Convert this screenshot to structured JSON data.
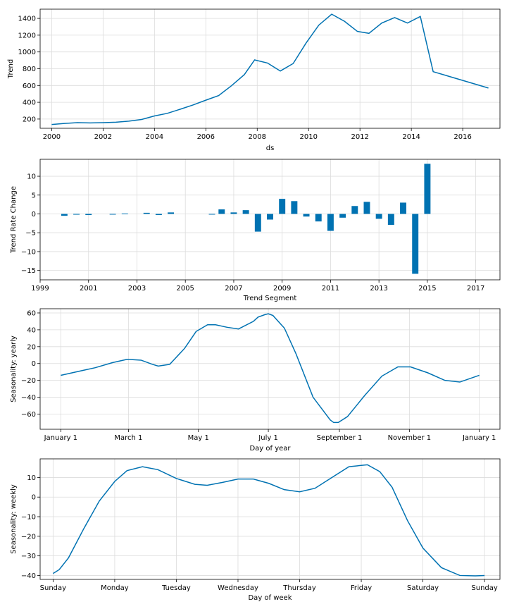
{
  "colors": {
    "series": "#0072B2",
    "grid": "#dcdcdc"
  },
  "chart_data": [
    {
      "type": "line",
      "title": "",
      "xlabel": "ds",
      "ylabel": "Trend",
      "xlim": [
        1999.55,
        2017.45
      ],
      "ylim": [
        90,
        1510
      ],
      "grid": true,
      "xticks": [
        2000,
        2002,
        2004,
        2006,
        2008,
        2010,
        2012,
        2014,
        2016
      ],
      "xtick_labels": [
        "2000",
        "2002",
        "2004",
        "2006",
        "2008",
        "2010",
        "2012",
        "2014",
        "2016"
      ],
      "yticks": [
        200,
        400,
        600,
        800,
        1000,
        1200,
        1400
      ],
      "ytick_labels": [
        "200",
        "400",
        "600",
        "800",
        "1000",
        "1200",
        "1400"
      ],
      "x": [
        2000.0,
        2000.5,
        2001.0,
        2001.5,
        2002.0,
        2002.5,
        2003.0,
        2003.5,
        2004.0,
        2004.5,
        2005.0,
        2005.5,
        2006.0,
        2006.5,
        2007.0,
        2007.5,
        2007.9,
        2008.4,
        2008.9,
        2009.4,
        2009.9,
        2010.4,
        2010.9,
        2011.4,
        2011.9,
        2012.35,
        2012.85,
        2013.35,
        2013.85,
        2014.35,
        2014.85,
        2017.0
      ],
      "y": [
        135,
        148,
        157,
        154,
        157,
        162,
        175,
        195,
        237,
        268,
        317,
        368,
        425,
        480,
        598,
        730,
        905,
        868,
        773,
        862,
        1105,
        1320,
        1450,
        1365,
        1245,
        1222,
        1345,
        1410,
        1345,
        1423,
        765,
        570
      ]
    },
    {
      "type": "bar",
      "title": "",
      "xlabel": "Trend Segment",
      "ylabel": "Trend Rate Change",
      "xlim": [
        1999,
        2018
      ],
      "ylim": [
        -17.5,
        14.5
      ],
      "grid": true,
      "xticks": [
        1999,
        2001,
        2003,
        2005,
        2007,
        2009,
        2011,
        2013,
        2015,
        2017
      ],
      "xtick_labels": [
        "1999",
        "2001",
        "2003",
        "2005",
        "2007",
        "2009",
        "2011",
        "2013",
        "2015",
        "2017"
      ],
      "yticks": [
        -15,
        -10,
        -5,
        0,
        5,
        10
      ],
      "ytick_labels": [
        "−15",
        "−10",
        "−5",
        "0",
        "5",
        "10"
      ],
      "bar_width": 0.26,
      "x": [
        2000.0,
        2000.5,
        2001.0,
        2002.0,
        2002.5,
        2003.4,
        2003.9,
        2004.4,
        2006.1,
        2006.5,
        2007.0,
        2007.5,
        2008.0,
        2008.5,
        2009.0,
        2009.5,
        2010.0,
        2010.5,
        2011.0,
        2011.5,
        2012.0,
        2012.5,
        2013.0,
        2013.5,
        2014.0,
        2014.5,
        2015.0
      ],
      "values": [
        -0.5,
        -0.2,
        -0.3,
        -0.1,
        0.1,
        0.3,
        -0.3,
        0.4,
        -0.1,
        1.2,
        0.4,
        1.0,
        -4.7,
        -1.5,
        4.0,
        3.4,
        -0.7,
        -2.0,
        -4.5,
        -1.0,
        2.1,
        3.2,
        -1.3,
        -2.9,
        3.0,
        -15.9,
        13.3
      ]
    },
    {
      "type": "line",
      "title": "",
      "xlabel": "Day of year",
      "ylabel": "Seasonality: yearly",
      "xlim": [
        -18,
        383
      ],
      "ylim": [
        -78,
        65
      ],
      "grid": true,
      "xticks": [
        0,
        59,
        120,
        181,
        243,
        304,
        365
      ],
      "xtick_labels": [
        "January 1",
        "March 1",
        "May 1",
        "July 1",
        "September 1",
        "November 1",
        "January 1"
      ],
      "yticks": [
        -60,
        -40,
        -20,
        0,
        20,
        40,
        60
      ],
      "ytick_labels": [
        "−60",
        "−40",
        "−20",
        "0",
        "20",
        "40",
        "60"
      ],
      "x": [
        0,
        20,
        30,
        45,
        58,
        70,
        80,
        85,
        95,
        108,
        118,
        128,
        135,
        145,
        155,
        168,
        172,
        178,
        181,
        185,
        195,
        205,
        220,
        235,
        238,
        242,
        250,
        265,
        280,
        294,
        305,
        320,
        335,
        348,
        365
      ],
      "y": [
        -14,
        -8,
        -5,
        1,
        5,
        4,
        -1,
        -3,
        -1,
        18,
        38,
        46,
        46,
        43,
        41,
        50,
        55,
        58,
        59,
        57,
        42,
        12,
        -40,
        -67,
        -70,
        -70,
        -63,
        -38,
        -15,
        -4,
        -4,
        -11,
        -20,
        -22,
        -14
      ]
    },
    {
      "type": "line",
      "title": "",
      "xlabel": "Day of week",
      "ylabel": "Seasonality: weekly",
      "xlim": [
        -0.21,
        7.25
      ],
      "ylim": [
        -42,
        19.5
      ],
      "grid": true,
      "xticks": [
        0,
        1,
        2,
        3,
        4,
        5,
        6,
        7
      ],
      "xtick_labels": [
        "Sunday",
        "Monday",
        "Tuesday",
        "Wednesday",
        "Thursday",
        "Friday",
        "Saturday",
        "Sunday"
      ],
      "yticks": [
        -40,
        -30,
        -20,
        -10,
        0,
        10
      ],
      "ytick_labels": [
        "−40",
        "−30",
        "−20",
        "−10",
        "0",
        "10"
      ],
      "x": [
        0.0,
        0.1,
        0.25,
        0.5,
        0.75,
        1.0,
        1.2,
        1.45,
        1.7,
        2.0,
        2.3,
        2.5,
        2.75,
        3.0,
        3.25,
        3.5,
        3.75,
        4.0,
        4.25,
        4.5,
        4.8,
        5.1,
        5.3,
        5.5,
        5.75,
        6.0,
        6.3,
        6.6,
        6.85,
        7.0
      ],
      "y": [
        -39,
        -37,
        -31,
        -16,
        -2,
        8,
        13.5,
        15.5,
        14,
        9.5,
        6.5,
        6.0,
        7.5,
        9.2,
        9.2,
        7.0,
        3.8,
        2.7,
        4.5,
        9.5,
        15.5,
        16.5,
        13,
        5,
        -12,
        -26,
        -36,
        -40,
        -40.2,
        -40
      ]
    }
  ]
}
